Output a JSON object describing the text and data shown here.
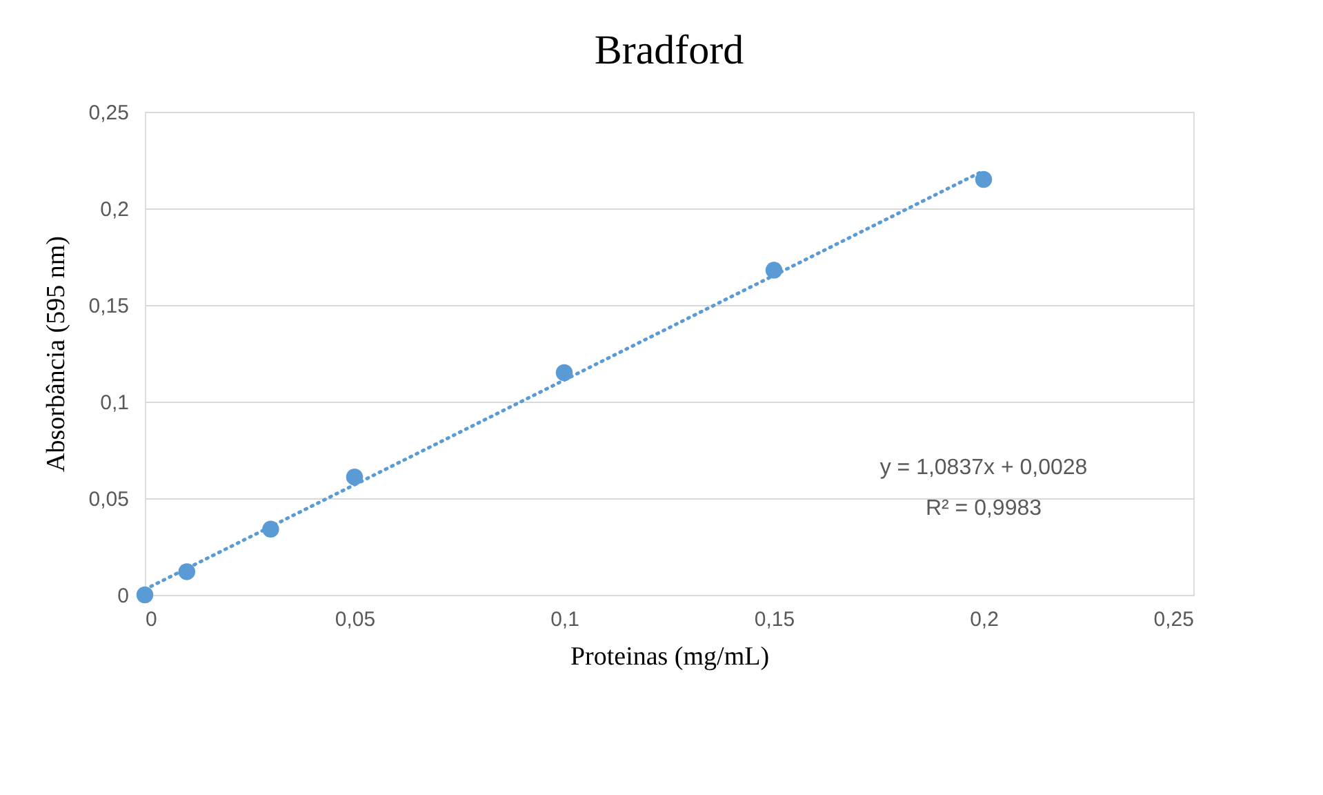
{
  "chart_data": {
    "type": "scatter",
    "title": "Bradford",
    "xlabel": "Proteinas (mg/mL)",
    "ylabel": "Absorbância (595 nm)",
    "xlim": [
      0,
      0.25
    ],
    "ylim": [
      0,
      0.25
    ],
    "xticks": [
      0,
      {
        "value": 0.05,
        "label": "0,05"
      },
      {
        "value": 0.1,
        "label": "0,1"
      },
      {
        "value": 0.15,
        "label": "0,15"
      },
      {
        "value": 0.2,
        "label": "0,2"
      },
      {
        "value": 0.25,
        "label": "0,25"
      }
    ],
    "yticks": [
      0,
      {
        "value": 0.05,
        "label": "0,05"
      },
      {
        "value": 0.1,
        "label": "0,1"
      },
      {
        "value": 0.15,
        "label": "0,15"
      },
      {
        "value": 0.2,
        "label": "0,2"
      },
      {
        "value": 0.25,
        "label": "0,25"
      }
    ],
    "grid": "y",
    "legend": false,
    "series": [
      {
        "type": "scatter",
        "color": "#5b9bd5",
        "marker": "circle",
        "x": [
          0,
          0.01,
          0.03,
          0.05,
          0.1,
          0.15,
          0.2
        ],
        "values": [
          0,
          0.012,
          0.034,
          0.061,
          0.115,
          0.168,
          0.215
        ]
      },
      {
        "type": "line",
        "color": "#5b9bd5",
        "marker": "none",
        "line_style": "dotted",
        "x": [
          0,
          0.2
        ],
        "values": [
          0.0028,
          0.2195
        ]
      }
    ],
    "annotations": [
      "y = 1,0837x + 0,0028",
      "R² = 0,9983"
    ]
  }
}
